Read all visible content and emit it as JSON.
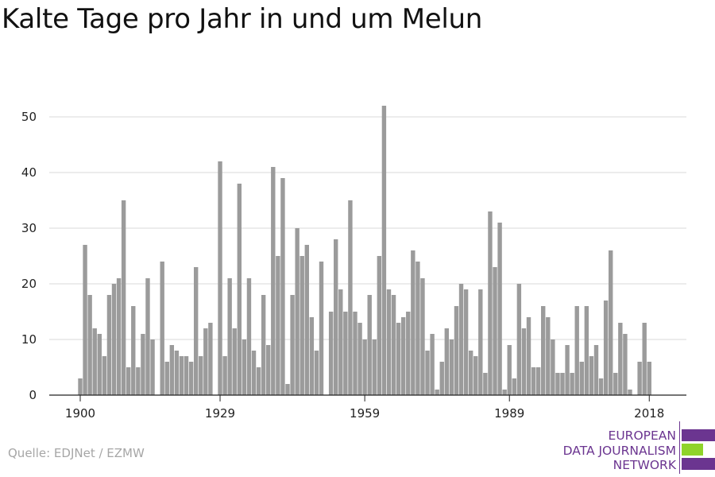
{
  "chart_data": {
    "type": "bar",
    "title": "Kalte Tage pro Jahr in und um Melun",
    "xlabel": "",
    "ylabel": "",
    "x_start": 1900,
    "x_end": 2020,
    "x_ticks": [
      1900,
      1929,
      1959,
      1989,
      2018
    ],
    "y_ticks": [
      0,
      10,
      20,
      30,
      40,
      50
    ],
    "ylim": [
      0,
      55
    ],
    "grid": true,
    "bar_color": "#9b9b9b",
    "values": [
      3,
      27,
      18,
      12,
      11,
      7,
      18,
      20,
      21,
      35,
      5,
      16,
      5,
      11,
      21,
      10,
      0,
      24,
      6,
      9,
      8,
      7,
      7,
      6,
      23,
      7,
      12,
      13,
      0,
      42,
      7,
      21,
      12,
      38,
      10,
      21,
      8,
      5,
      18,
      9,
      41,
      25,
      39,
      2,
      18,
      30,
      25,
      27,
      14,
      8,
      24,
      0,
      15,
      28,
      19,
      15,
      35,
      15,
      13,
      10,
      18,
      10,
      25,
      52,
      19,
      18,
      13,
      14,
      15,
      26,
      24,
      21,
      8,
      11,
      1,
      6,
      12,
      10,
      16,
      20,
      19,
      8,
      7,
      19,
      4,
      33,
      23,
      31,
      1,
      9,
      3,
      20,
      12,
      14,
      5,
      5,
      16,
      14,
      10,
      4,
      4,
      9,
      4,
      16,
      6,
      16,
      7,
      9,
      3,
      17,
      26,
      4,
      13,
      11,
      1,
      0,
      6,
      13,
      6
    ]
  },
  "source": "Quelle: EDJNet / EZMW",
  "logo": {
    "lines": [
      "EUROPEAN",
      "DATA JOURNALISM",
      "NETWORK"
    ],
    "colors": {
      "text": "#6b3590",
      "purple": "#6b3590",
      "green": "#8fd32a"
    }
  }
}
